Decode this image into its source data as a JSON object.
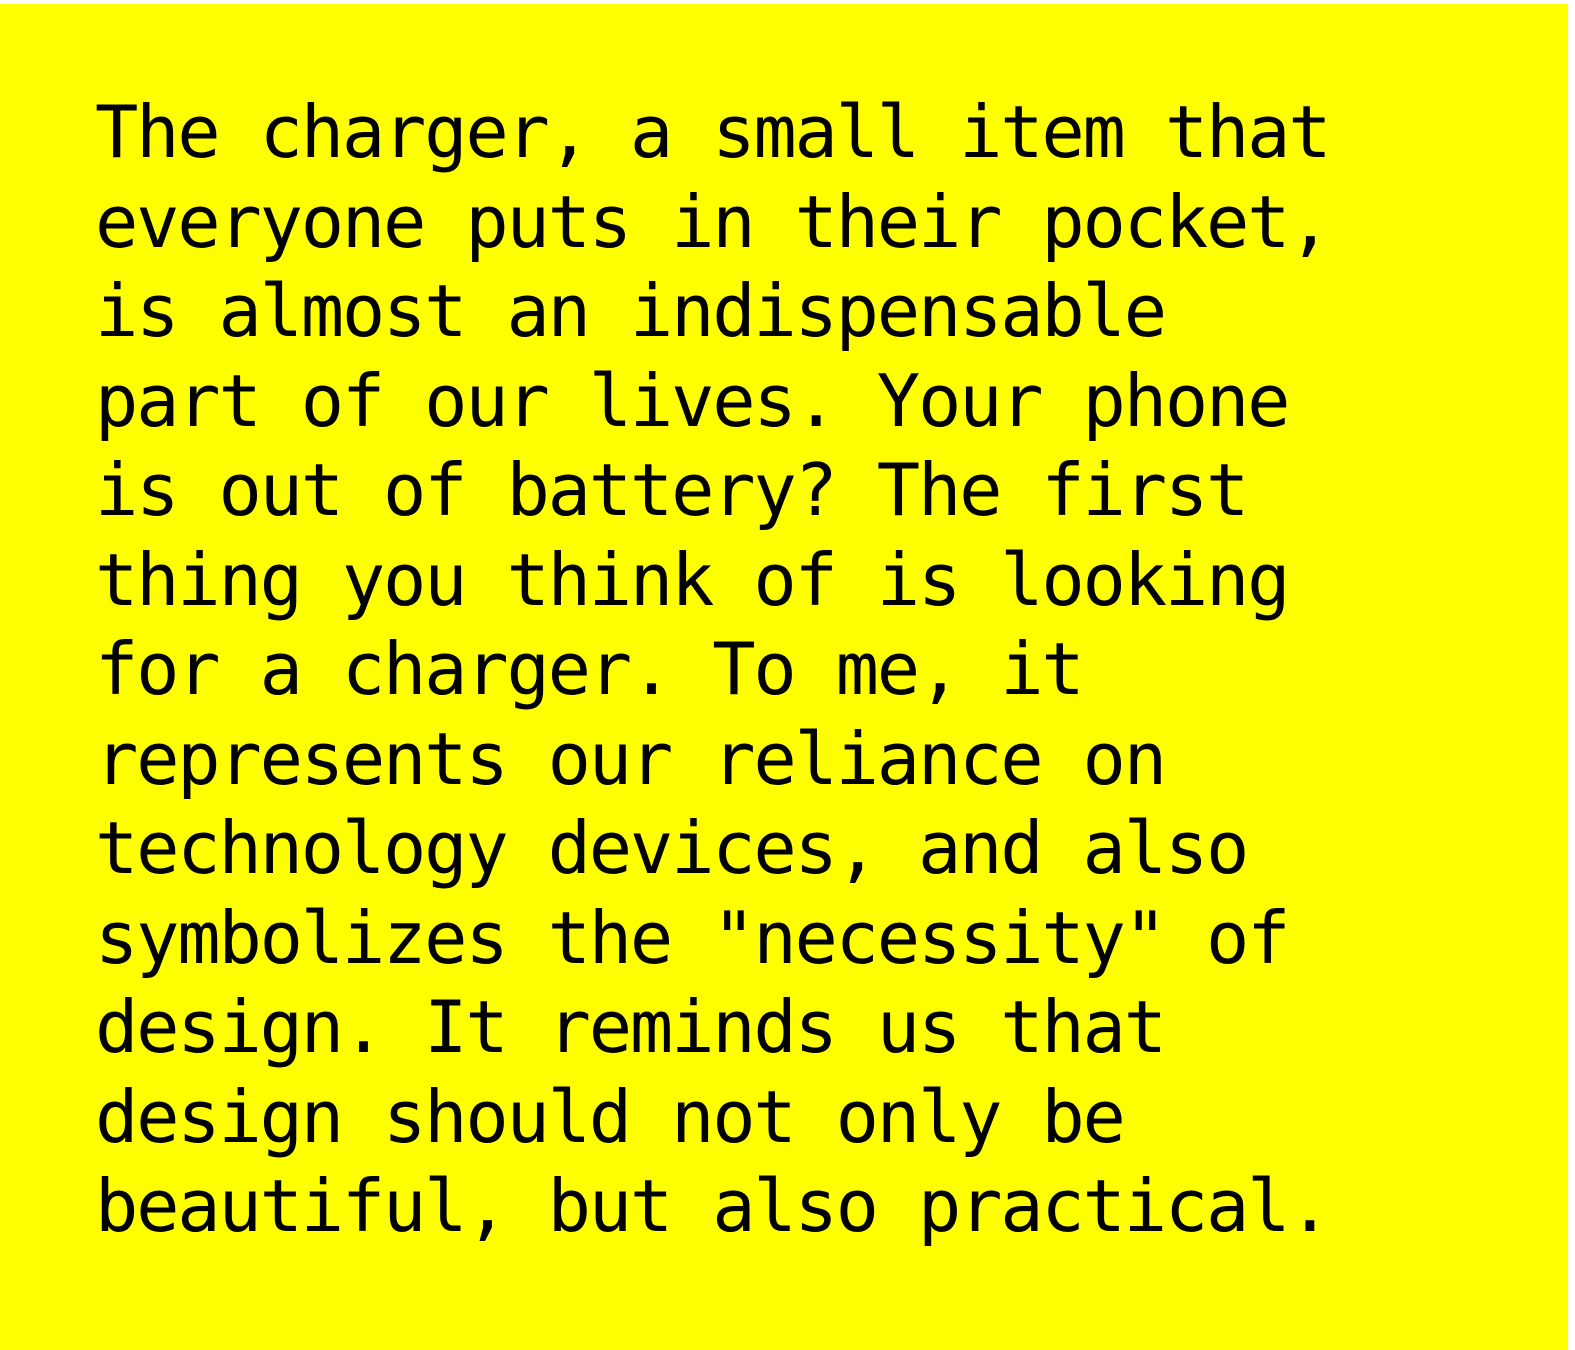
{
  "colors": {
    "background": "#ffff00",
    "text": "#000000",
    "page": "#ffffff"
  },
  "body_lines": [
    "The charger, a small item that",
    "everyone puts in their pocket,",
    "is almost an indispensable",
    "part of our lives. Your phone",
    "is out of battery? The first",
    "thing you think of is looking",
    "for a charger. To me, it",
    "represents our reliance on",
    "technology devices, and also",
    "symbolizes the \"necessity\" of",
    "design. It reminds us that",
    "design should not only be",
    "beautiful, but also practical."
  ]
}
